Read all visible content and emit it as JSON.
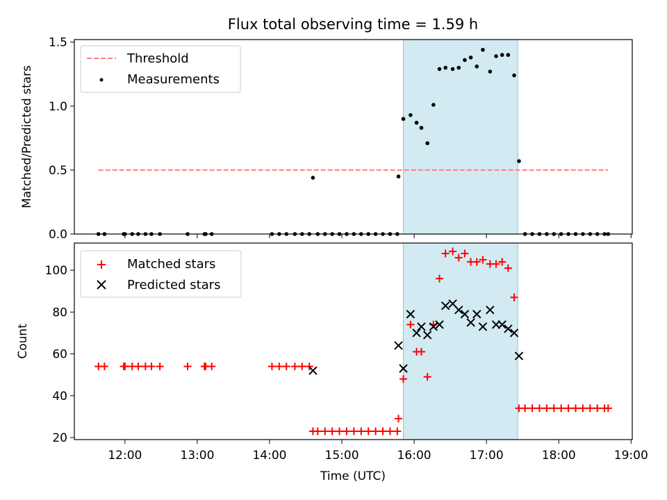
{
  "title": "Flux total observing time = 1.59 h",
  "colors": {
    "threshold": "#ff7f7f",
    "measurements": "#000000",
    "matched": "#ff0000",
    "predicted": "#000000",
    "window": "#add8e6"
  },
  "chart_data": [
    {
      "type": "scatter",
      "panel": "top",
      "xlabel": "",
      "ylabel": "Matched/Predicted stars",
      "xlim": [
        "11:18",
        "19:01"
      ],
      "ylim": [
        0,
        1.52
      ],
      "yticks": [
        0.0,
        0.5,
        1.0,
        1.5
      ],
      "ytick_labels": [
        "0.0",
        "0.5",
        "1.0",
        "1.5"
      ],
      "shaded_window": [
        "15:51",
        "17:26"
      ],
      "legend": {
        "placement": "upper-left",
        "entries": [
          "Threshold",
          "Measurements"
        ]
      },
      "threshold": {
        "name": "Threshold",
        "x": [
          "11:38",
          "18:41"
        ],
        "y": 0.5,
        "style": "dashed"
      },
      "series": [
        {
          "name": "Measurements",
          "marker": "dot",
          "points": [
            [
              "11:38",
              0
            ],
            [
              "11:43",
              0
            ],
            [
              "11:59",
              0
            ],
            [
              "12:00",
              0
            ],
            [
              "12:06",
              0
            ],
            [
              "12:11",
              0
            ],
            [
              "12:17",
              0
            ],
            [
              "12:22",
              0
            ],
            [
              "12:29",
              0
            ],
            [
              "12:52",
              0
            ],
            [
              "13:06",
              0
            ],
            [
              "13:07",
              0
            ],
            [
              "13:12",
              0
            ],
            [
              "14:02",
              0
            ],
            [
              "14:08",
              0
            ],
            [
              "14:14",
              0
            ],
            [
              "14:21",
              0
            ],
            [
              "14:27",
              0
            ],
            [
              "14:33",
              0
            ],
            [
              "14:36",
              0.44
            ],
            [
              "14:40",
              0
            ],
            [
              "14:46",
              0
            ],
            [
              "14:52",
              0
            ],
            [
              "14:58",
              0
            ],
            [
              "15:04",
              0
            ],
            [
              "15:10",
              0
            ],
            [
              "15:16",
              0
            ],
            [
              "15:22",
              0
            ],
            [
              "15:28",
              0
            ],
            [
              "15:34",
              0
            ],
            [
              "15:40",
              0
            ],
            [
              "15:46",
              0
            ],
            [
              "15:47",
              0.45
            ],
            [
              "15:51",
              0.9
            ],
            [
              "15:57",
              0.93
            ],
            [
              "16:02",
              0.87
            ],
            [
              "16:06",
              0.83
            ],
            [
              "16:11",
              0.71
            ],
            [
              "16:16",
              1.01
            ],
            [
              "16:21",
              1.29
            ],
            [
              "16:26",
              1.3
            ],
            [
              "16:32",
              1.29
            ],
            [
              "16:37",
              1.3
            ],
            [
              "16:42",
              1.36
            ],
            [
              "16:47",
              1.38
            ],
            [
              "16:52",
              1.31
            ],
            [
              "16:57",
              1.44
            ],
            [
              "17:03",
              1.27
            ],
            [
              "17:08",
              1.39
            ],
            [
              "17:13",
              1.4
            ],
            [
              "17:18",
              1.4
            ],
            [
              "17:23",
              1.24
            ],
            [
              "17:27",
              0.57
            ],
            [
              "17:32",
              0
            ],
            [
              "17:38",
              0
            ],
            [
              "17:44",
              0
            ],
            [
              "17:50",
              0
            ],
            [
              "17:56",
              0
            ],
            [
              "18:02",
              0
            ],
            [
              "18:08",
              0
            ],
            [
              "18:14",
              0
            ],
            [
              "18:20",
              0
            ],
            [
              "18:26",
              0
            ],
            [
              "18:32",
              0
            ],
            [
              "18:38",
              0
            ],
            [
              "18:41",
              0
            ]
          ]
        }
      ]
    },
    {
      "type": "scatter",
      "panel": "bottom",
      "xlabel": "Time (UTC)",
      "ylabel": "Count",
      "xlim": [
        "11:18",
        "19:01"
      ],
      "ylim": [
        19,
        113
      ],
      "xticks": [
        "12:00",
        "13:00",
        "14:00",
        "15:00",
        "16:00",
        "17:00",
        "18:00",
        "19:00"
      ],
      "yticks": [
        20,
        40,
        60,
        80,
        100
      ],
      "ytick_labels": [
        "20",
        "40",
        "60",
        "80",
        "100"
      ],
      "shaded_window": [
        "15:51",
        "17:26"
      ],
      "legend": {
        "placement": "upper-left",
        "entries": [
          "Matched stars",
          "Predicted stars"
        ]
      },
      "series": [
        {
          "name": "Matched stars",
          "marker": "plus",
          "points": [
            [
              "11:38",
              54
            ],
            [
              "11:43",
              54
            ],
            [
              "11:59",
              54
            ],
            [
              "12:00",
              54
            ],
            [
              "12:06",
              54
            ],
            [
              "12:11",
              54
            ],
            [
              "12:17",
              54
            ],
            [
              "12:22",
              54
            ],
            [
              "12:29",
              54
            ],
            [
              "12:52",
              54
            ],
            [
              "13:06",
              54
            ],
            [
              "13:07",
              54
            ],
            [
              "13:12",
              54
            ],
            [
              "14:02",
              54
            ],
            [
              "14:08",
              54
            ],
            [
              "14:14",
              54
            ],
            [
              "14:21",
              54
            ],
            [
              "14:27",
              54
            ],
            [
              "14:33",
              54
            ],
            [
              "14:36",
              23
            ],
            [
              "14:40",
              23
            ],
            [
              "14:46",
              23
            ],
            [
              "14:52",
              23
            ],
            [
              "14:58",
              23
            ],
            [
              "15:04",
              23
            ],
            [
              "15:10",
              23
            ],
            [
              "15:16",
              23
            ],
            [
              "15:22",
              23
            ],
            [
              "15:28",
              23
            ],
            [
              "15:34",
              23
            ],
            [
              "15:40",
              23
            ],
            [
              "15:46",
              23
            ],
            [
              "15:47",
              29
            ],
            [
              "15:51",
              48
            ],
            [
              "15:57",
              74
            ],
            [
              "16:02",
              61
            ],
            [
              "16:06",
              61
            ],
            [
              "16:11",
              49
            ],
            [
              "16:16",
              74
            ],
            [
              "16:21",
              96
            ],
            [
              "16:26",
              108
            ],
            [
              "16:32",
              109
            ],
            [
              "16:37",
              106
            ],
            [
              "16:42",
              108
            ],
            [
              "16:47",
              104
            ],
            [
              "16:52",
              104
            ],
            [
              "16:57",
              105
            ],
            [
              "17:03",
              103
            ],
            [
              "17:08",
              103
            ],
            [
              "17:13",
              104
            ],
            [
              "17:18",
              101
            ],
            [
              "17:23",
              87
            ],
            [
              "17:27",
              34
            ],
            [
              "17:32",
              34
            ],
            [
              "17:38",
              34
            ],
            [
              "17:44",
              34
            ],
            [
              "17:50",
              34
            ],
            [
              "17:56",
              34
            ],
            [
              "18:02",
              34
            ],
            [
              "18:08",
              34
            ],
            [
              "18:14",
              34
            ],
            [
              "18:20",
              34
            ],
            [
              "18:26",
              34
            ],
            [
              "18:32",
              34
            ],
            [
              "18:38",
              34
            ],
            [
              "18:41",
              34
            ]
          ]
        },
        {
          "name": "Predicted stars",
          "marker": "x",
          "points": [
            [
              "14:36",
              52
            ],
            [
              "15:47",
              64
            ],
            [
              "15:51",
              53
            ],
            [
              "15:57",
              79
            ],
            [
              "16:02",
              70
            ],
            [
              "16:06",
              73
            ],
            [
              "16:11",
              69
            ],
            [
              "16:16",
              73
            ],
            [
              "16:21",
              74
            ],
            [
              "16:26",
              83
            ],
            [
              "16:32",
              84
            ],
            [
              "16:37",
              81
            ],
            [
              "16:42",
              79
            ],
            [
              "16:47",
              75
            ],
            [
              "16:52",
              79
            ],
            [
              "16:57",
              73
            ],
            [
              "17:03",
              81
            ],
            [
              "17:08",
              74
            ],
            [
              "17:13",
              74
            ],
            [
              "17:18",
              72
            ],
            [
              "17:23",
              70
            ],
            [
              "17:27",
              59
            ]
          ]
        }
      ]
    }
  ]
}
